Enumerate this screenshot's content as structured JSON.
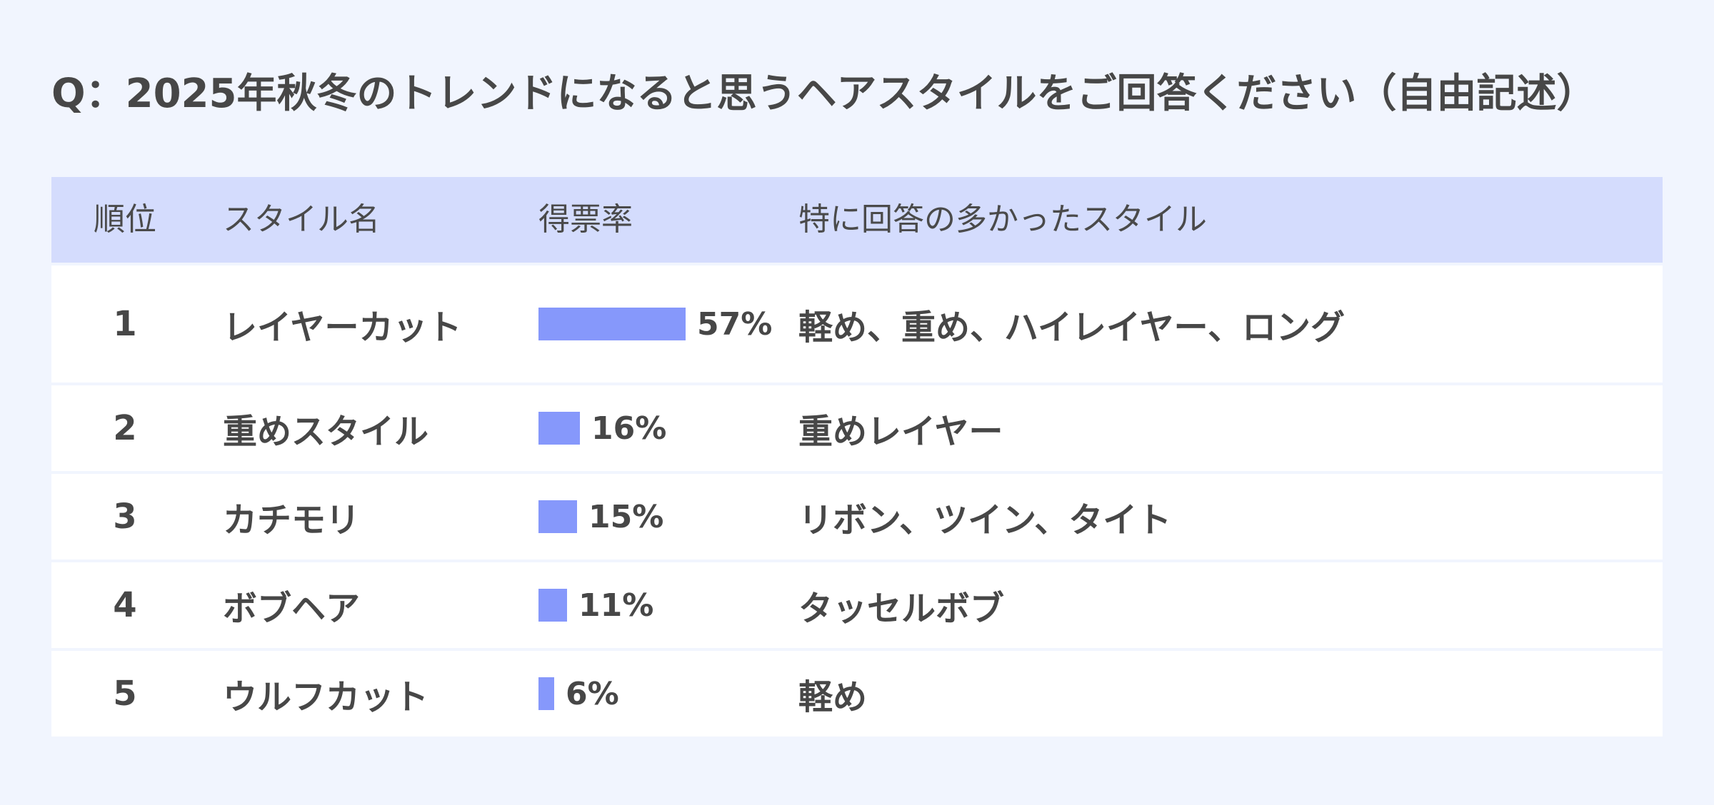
{
  "title": "Q：2025年秋冬のトレンドになると思うヘアスタイルをご回答ください（自由記述）",
  "headers": {
    "rank": "順位",
    "style": "スタイル名",
    "rate": "得票率",
    "detail": "特に回答の多かったスタイル"
  },
  "colors": {
    "background": "#f1f5fe",
    "header_bg": "#d4dcfd",
    "bar": "#8698fb",
    "text": "#474747"
  },
  "chart_data": {
    "type": "table",
    "max_value": 57,
    "rows": [
      {
        "rank": "1",
        "style": "レイヤーカット",
        "value": 57,
        "label": "57%",
        "detail": "軽め、重め、ハイレイヤー、ロング"
      },
      {
        "rank": "2",
        "style": "重めスタイル",
        "value": 16,
        "label": "16%",
        "detail": "重めレイヤー"
      },
      {
        "rank": "3",
        "style": "カチモリ",
        "value": 15,
        "label": "15%",
        "detail": "リボン、ツイン、タイト"
      },
      {
        "rank": "4",
        "style": "ボブヘア",
        "value": 11,
        "label": "11%",
        "detail": "タッセルボブ"
      },
      {
        "rank": "5",
        "style": "ウルフカット",
        "value": 6,
        "label": "6%",
        "detail": "軽め"
      }
    ]
  }
}
